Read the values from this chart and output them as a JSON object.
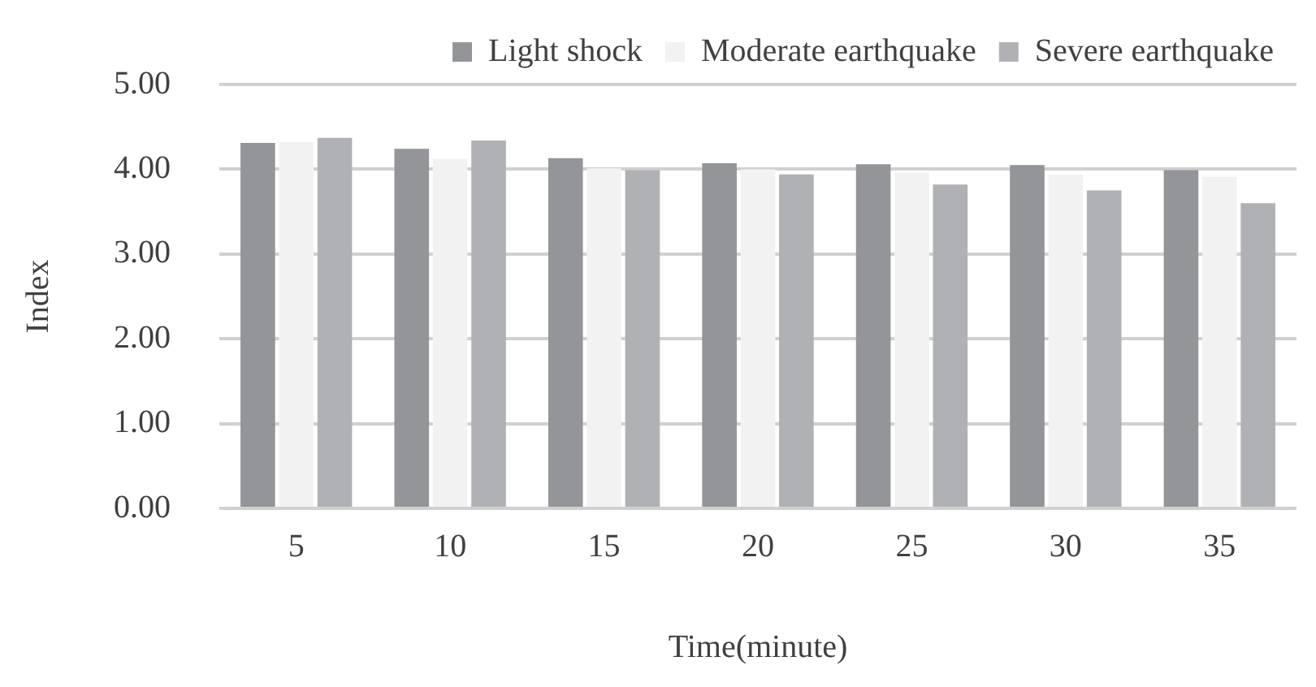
{
  "chart_data": {
    "type": "bar",
    "xlabel": "Time(minute)",
    "ylabel": "Index",
    "categories": [
      "5",
      "10",
      "15",
      "20",
      "25",
      "30",
      "35"
    ],
    "series": [
      {
        "name": "Light shock",
        "color": "#939598",
        "values": [
          4.31,
          4.24,
          4.13,
          4.07,
          4.06,
          4.05,
          3.99
        ]
      },
      {
        "name": "Moderate earthquake",
        "color": "#f2f2f2",
        "values": [
          4.32,
          4.12,
          4.01,
          4.0,
          3.96,
          3.94,
          3.91
        ]
      },
      {
        "name": "Severe earthquake",
        "color": "#b0b1b4",
        "values": [
          4.37,
          4.34,
          3.99,
          3.94,
          3.82,
          3.75,
          3.6
        ]
      }
    ],
    "ylim": [
      0,
      5
    ],
    "yticks": [
      {
        "value": 0,
        "label": "0.00"
      },
      {
        "value": 1,
        "label": "1.00"
      },
      {
        "value": 2,
        "label": "2.00"
      },
      {
        "value": 3,
        "label": "3.00"
      },
      {
        "value": 4,
        "label": "4.00"
      },
      {
        "value": 5,
        "label": "5.00"
      }
    ],
    "grid": "y",
    "legend": "top"
  }
}
